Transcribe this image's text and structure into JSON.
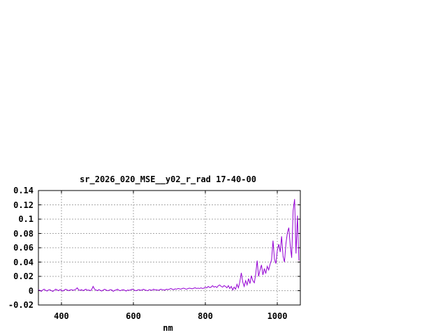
{
  "title": "sr_2026_020_MSE__y02_r_rad 17-40-00",
  "colors": {
    "background": "#ffffff",
    "frame": "#000000",
    "grid": "#a8a8a8",
    "line": "#9400d3",
    "text": "#000000"
  },
  "chart_data": {
    "type": "line",
    "title": "sr_2026_020_MSE__y02_r_rad 17-40-00",
    "xlabel": "nm",
    "ylabel": "",
    "xlim": [
      336,
      1064
    ],
    "ylim": [
      -0.02,
      0.14
    ],
    "grid": true,
    "legend": "none",
    "x_ticks": [
      400,
      600,
      800,
      1000
    ],
    "x_tick_labels": [
      "400",
      "600",
      "800",
      "1000"
    ],
    "y_ticks": [
      -0.02,
      0,
      0.02,
      0.04,
      0.06,
      0.08,
      0.1,
      0.12,
      0.14
    ],
    "y_tick_labels": [
      "-0.02",
      "0",
      "0.02",
      "0.04",
      "0.06",
      "0.08",
      "0.1",
      "0.12",
      "0.14"
    ],
    "series": [
      {
        "name": "sr_2026_020_MSE__y02_r_rad",
        "color": "#9400d3",
        "x": [
          336,
          340,
          344,
          348,
          352,
          356,
          360,
          364,
          368,
          372,
          376,
          380,
          384,
          388,
          392,
          396,
          400,
          404,
          408,
          412,
          416,
          420,
          424,
          428,
          432,
          436,
          440,
          444,
          448,
          452,
          456,
          460,
          464,
          468,
          472,
          476,
          480,
          484,
          488,
          492,
          496,
          500,
          504,
          508,
          512,
          516,
          520,
          524,
          528,
          532,
          536,
          540,
          544,
          548,
          552,
          556,
          560,
          564,
          568,
          572,
          576,
          580,
          584,
          588,
          592,
          596,
          600,
          604,
          608,
          612,
          616,
          620,
          624,
          628,
          632,
          636,
          640,
          644,
          648,
          652,
          656,
          660,
          664,
          668,
          672,
          676,
          680,
          684,
          688,
          692,
          696,
          700,
          704,
          708,
          712,
          716,
          720,
          724,
          728,
          732,
          736,
          740,
          744,
          748,
          752,
          756,
          760,
          764,
          768,
          772,
          776,
          780,
          784,
          788,
          792,
          796,
          800,
          804,
          808,
          812,
          816,
          820,
          824,
          828,
          832,
          836,
          840,
          844,
          848,
          852,
          856,
          860,
          864,
          868,
          872,
          876,
          880,
          884,
          888,
          892,
          896,
          900,
          904,
          908,
          912,
          916,
          920,
          924,
          928,
          932,
          936,
          940,
          944,
          948,
          952,
          956,
          960,
          964,
          968,
          972,
          976,
          980,
          984,
          988,
          992,
          996,
          1000,
          1004,
          1008,
          1012,
          1016,
          1020,
          1024,
          1028,
          1032,
          1036,
          1040,
          1044,
          1048,
          1052,
          1056,
          1060
        ],
        "y": [
          0.001,
          0.0005,
          -0.001,
          0.001,
          0.002,
          0.0005,
          -0.0005,
          0.001,
          0.0015,
          0,
          -0.001,
          0.0005,
          0.002,
          0.001,
          0,
          0.0015,
          0.0005,
          -0.0005,
          0.001,
          0.002,
          0.001,
          0,
          0.001,
          0.0015,
          0.0005,
          0.001,
          0.002,
          0.004,
          0.001,
          0.0005,
          0.0015,
          0,
          0.001,
          0.002,
          0.0005,
          0.001,
          0,
          0.0015,
          0.006,
          0.002,
          0.001,
          0,
          0.0015,
          0.0005,
          -0.0005,
          0.001,
          0.002,
          0.001,
          0,
          0.0005,
          0.0015,
          0.001,
          -0.001,
          0.0005,
          0.001,
          0.002,
          0.0005,
          0,
          0.001,
          0.0015,
          0.0005,
          -0.0005,
          0.001,
          0.0005,
          0.001,
          0.002,
          0.0015,
          0.0005,
          0,
          0.001,
          0.0015,
          0.0005,
          0.001,
          0.002,
          0.001,
          0.0005,
          0,
          0.0015,
          0.001,
          0.0005,
          0.002,
          0.001,
          0.0015,
          0.0005,
          0.001,
          0.002,
          0.0015,
          0.001,
          0.001,
          0.002,
          0.0015,
          0.002,
          0.003,
          0.002,
          0.0015,
          0.0025,
          0.002,
          0.003,
          0.0025,
          0.002,
          0.003,
          0.0035,
          0.0025,
          0.002,
          0.003,
          0.0035,
          0.003,
          0.0025,
          0.0035,
          0.004,
          0.003,
          0.0035,
          0.003,
          0.004,
          0.003,
          0.0035,
          0.005,
          0.004,
          0.006,
          0.0045,
          0.005,
          0.007,
          0.005,
          0.006,
          0.0045,
          0.007,
          0.008,
          0.006,
          0.005,
          0.007,
          0.006,
          0.004,
          0.007,
          0.003,
          0.006,
          0.001,
          0.005,
          0.002,
          0.009,
          0.004,
          0.013,
          0.025,
          0.012,
          0.006,
          0.014,
          0.008,
          0.017,
          0.01,
          0.021,
          0.014,
          0.011,
          0.023,
          0.042,
          0.02,
          0.029,
          0.036,
          0.022,
          0.031,
          0.024,
          0.034,
          0.029,
          0.037,
          0.043,
          0.07,
          0.044,
          0.038,
          0.056,
          0.065,
          0.054,
          0.076,
          0.048,
          0.04,
          0.066,
          0.081,
          0.088,
          0.063,
          0.046,
          0.112,
          0.128,
          0.052,
          0.105,
          0.042
        ]
      }
    ]
  }
}
